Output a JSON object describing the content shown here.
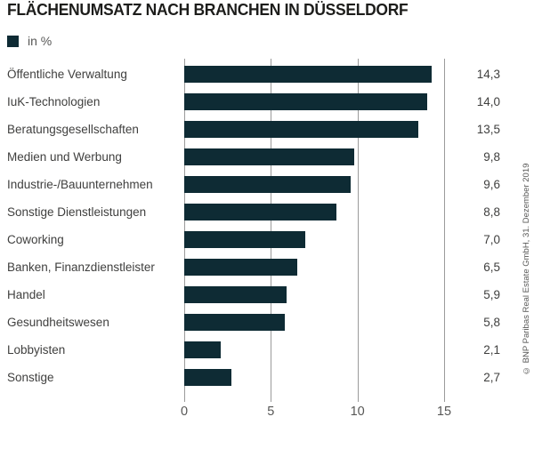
{
  "title": "FLÄCHENUMSATZ NACH BRANCHEN IN DÜSSELDORF",
  "legend_label": "in %",
  "source": "© BNP Paribas Real Estate GmbH, 31. Dezember 2019",
  "colors": {
    "bar": "#0e2b34",
    "gridline": "#9b9b9b",
    "title_text": "#1d1d1b",
    "label_text": "#3f3f3e",
    "axis_text": "#575756"
  },
  "chart_data": {
    "type": "bar",
    "orientation": "horizontal",
    "title": "FLÄCHENUMSATZ NACH BRANCHEN IN DÜSSELDORF",
    "legend": [
      "in %"
    ],
    "legend_position": "top-left",
    "unit": "%",
    "categories": [
      "Öffentliche Verwaltung",
      "IuK-Technologien",
      "Beratungsgesellschaften",
      "Medien und Werbung",
      "Industrie-/Bauunternehmen",
      "Sonstige Dienstleistungen",
      "Coworking",
      "Banken, Finanzdienstleister",
      "Handel",
      "Gesundheitswesen",
      "Lobbyisten",
      "Sonstige"
    ],
    "values": [
      14.3,
      14.0,
      13.5,
      9.8,
      9.6,
      8.8,
      7.0,
      6.5,
      5.9,
      5.8,
      2.1,
      2.7
    ],
    "value_labels": [
      "14,3",
      "14,0",
      "13,5",
      "9,8",
      "9,6",
      "8,8",
      "7,0",
      "6,5",
      "5,9",
      "5,8",
      "2,1",
      "2,7"
    ],
    "xlabel": "",
    "ylabel": "",
    "xlim": [
      0,
      15
    ],
    "x_ticks": [
      0,
      5,
      10,
      15
    ],
    "x_tick_labels": [
      "0",
      "5",
      "10",
      "15"
    ],
    "grid": "vertical"
  }
}
